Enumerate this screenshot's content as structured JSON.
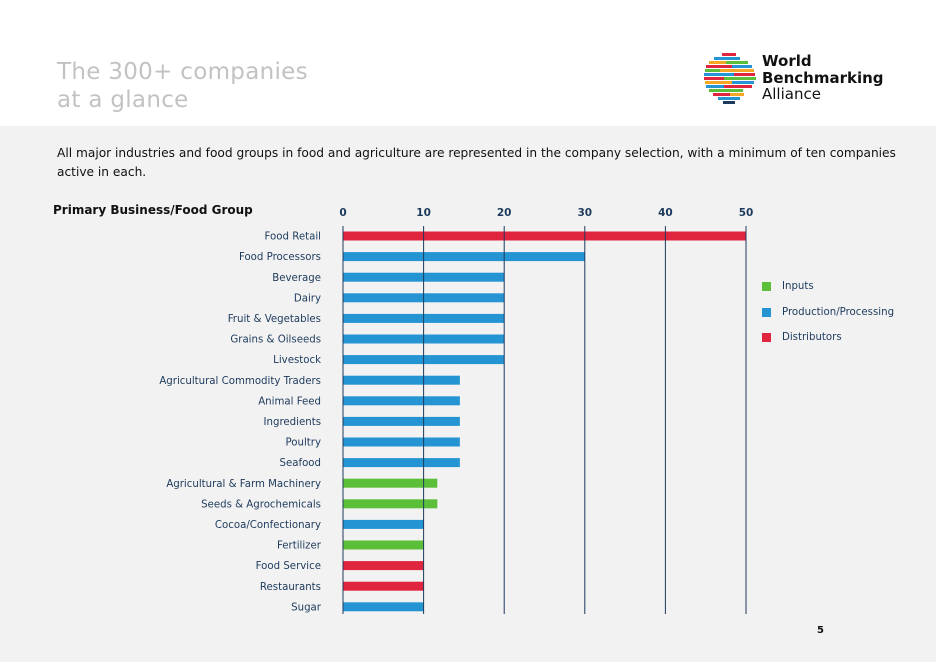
{
  "header": {
    "title_line1": "The 300+ companies",
    "title_line2": "at a glance"
  },
  "logo": {
    "line1": "World",
    "line2": "Benchmarking",
    "line3": "Alliance"
  },
  "intro": "All major industries and food groups in food and agriculture are represented in the company selection, with a minimum of ten companies active in each.",
  "page_number": "5",
  "colors": {
    "inputs": "#5cbf3a",
    "production": "#2494d2",
    "distributors": "#e0263f",
    "axis": "#1d3a5c"
  },
  "chart_data": {
    "type": "bar",
    "orientation": "horizontal",
    "category_header": "Primary Business/Food Group",
    "xlim": [
      0,
      50
    ],
    "ticks": [
      0,
      10,
      20,
      30,
      40,
      50
    ],
    "grid": true,
    "legend_position": "right",
    "legend": [
      {
        "key": "inputs",
        "label": "Inputs"
      },
      {
        "key": "production",
        "label": "Production/Processing"
      },
      {
        "key": "distributors",
        "label": "Distributors"
      }
    ],
    "bars": [
      {
        "label": "Food Retail",
        "value": 50,
        "group": "distributors"
      },
      {
        "label": "Food Processors",
        "value": 30,
        "group": "production"
      },
      {
        "label": "Beverage",
        "value": 20,
        "group": "production"
      },
      {
        "label": "Dairy",
        "value": 20,
        "group": "production"
      },
      {
        "label": "Fruit & Vegetables",
        "value": 20,
        "group": "production"
      },
      {
        "label": "Grains & Oilseeds",
        "value": 20,
        "group": "production"
      },
      {
        "label": "Livestock",
        "value": 20,
        "group": "production"
      },
      {
        "label": "Agricultural Commodity Traders",
        "value": 14.5,
        "group": "production"
      },
      {
        "label": "Animal Feed",
        "value": 14.5,
        "group": "production"
      },
      {
        "label": "Ingredients",
        "value": 14.5,
        "group": "production"
      },
      {
        "label": "Poultry",
        "value": 14.5,
        "group": "production"
      },
      {
        "label": "Seafood",
        "value": 14.5,
        "group": "production"
      },
      {
        "label": "Agricultural & Farm Machinery",
        "value": 11.7,
        "group": "inputs"
      },
      {
        "label": "Seeds & Agrochemicals",
        "value": 11.7,
        "group": "inputs"
      },
      {
        "label": "Cocoa/Confectionary",
        "value": 10,
        "group": "production"
      },
      {
        "label": "Fertilizer",
        "value": 10,
        "group": "inputs"
      },
      {
        "label": "Food Service",
        "value": 10,
        "group": "distributors"
      },
      {
        "label": "Restaurants",
        "value": 10,
        "group": "distributors"
      },
      {
        "label": "Sugar",
        "value": 10,
        "group": "production"
      }
    ]
  }
}
